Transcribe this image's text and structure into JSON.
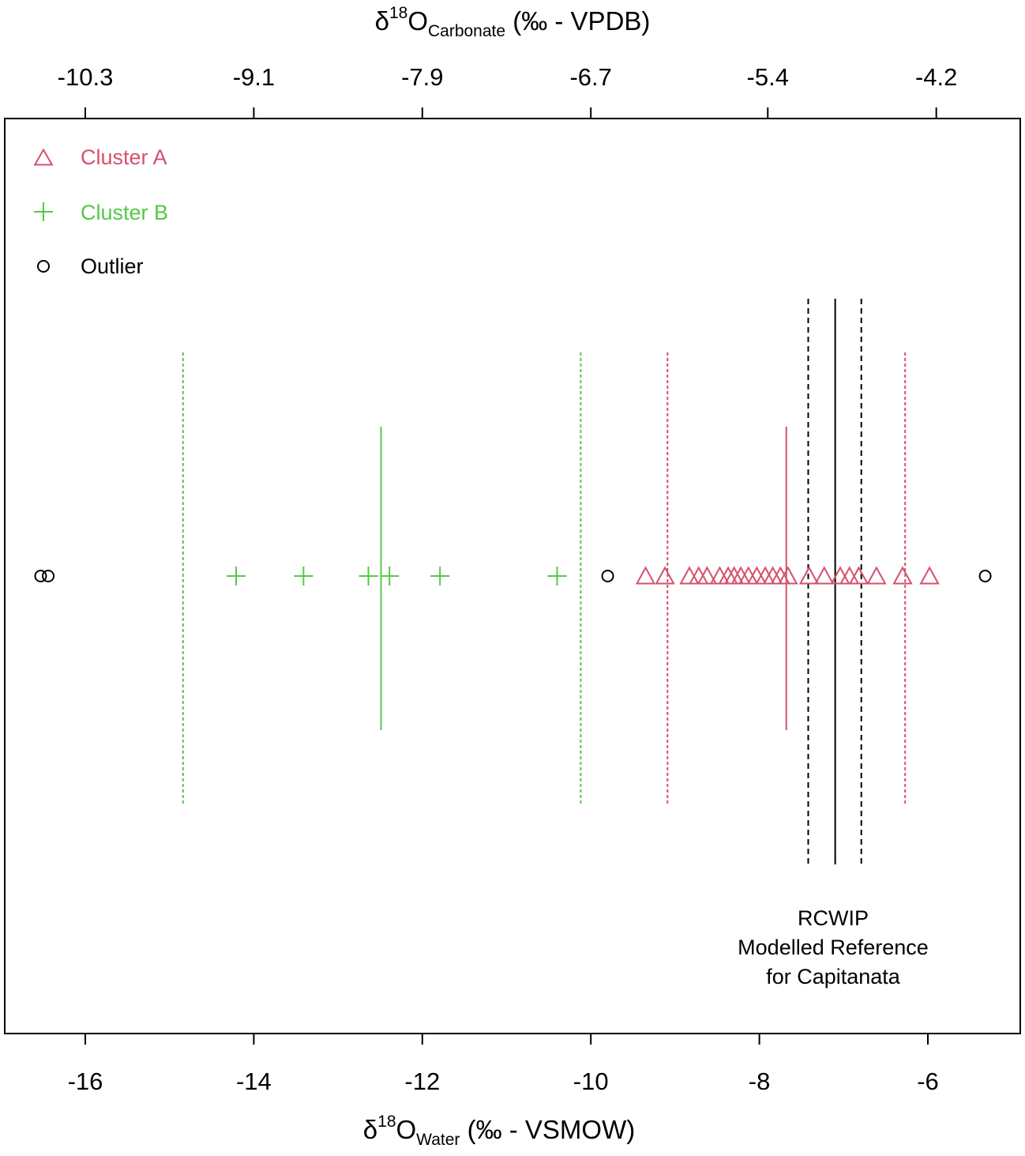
{
  "chart_data": {
    "type": "scatter",
    "bottom_axis": {
      "symbol": "δ",
      "sup": "18",
      "base": "O",
      "sub": "Water",
      "unit": " (‰ - VSMOW)",
      "ticks": [
        -16,
        -14,
        -12,
        -10,
        -8,
        -6
      ],
      "tick_labels": [
        "-16",
        "-14",
        "-12",
        "-10",
        "-8",
        "-6"
      ],
      "xlim": [
        -16.9,
        -5.2
      ]
    },
    "top_axis": {
      "symbol": "δ",
      "sup": "18",
      "base": "O",
      "sub": "Carbonate",
      "unit": " (‰ - VPDB)",
      "ticks": [
        -10.3,
        -9.1,
        -7.9,
        -6.7,
        -5.4,
        -4.2
      ],
      "tick_labels": [
        "-10.3",
        "-9.1",
        "-7.9",
        "-6.7",
        "-5.4",
        "-4.2"
      ],
      "water_equivalent": [
        -16.0,
        -14.0,
        -12.0,
        -10.0,
        -7.9,
        -5.9
      ]
    },
    "grid": false,
    "legend": {
      "placement": "top-left",
      "entries": [
        {
          "label": "Cluster A",
          "marker": "triangle",
          "color": "#d6506d"
        },
        {
          "label": "Cluster B",
          "marker": "plus",
          "color": "#56c84a"
        },
        {
          "label": "Outlier",
          "marker": "circle",
          "color": "#000000"
        }
      ]
    },
    "series": [
      {
        "name": "Cluster A",
        "marker": "triangle",
        "color": "#d6506d",
        "values": [
          -9.35,
          -9.12,
          -8.83,
          -8.72,
          -8.62,
          -8.47,
          -8.37,
          -8.3,
          -8.22,
          -8.13,
          -8.03,
          -7.93,
          -7.84,
          -7.75,
          -7.66,
          -7.41,
          -7.23,
          -7.04,
          -6.93,
          -6.82,
          -6.61,
          -6.3,
          -5.98
        ],
        "mean": -7.68,
        "bounds": [
          -9.09,
          -6.27
        ]
      },
      {
        "name": "Cluster B",
        "marker": "plus",
        "color": "#56c84a",
        "values": [
          -14.21,
          -13.41,
          -12.64,
          -12.39,
          -11.79,
          -10.4
        ],
        "mean": -12.49,
        "bounds": [
          -14.84,
          -10.12
        ]
      },
      {
        "name": "Outlier",
        "marker": "circle",
        "color": "#000000",
        "values": [
          -16.53,
          -16.44,
          -9.8,
          -5.32
        ]
      }
    ],
    "reference": {
      "color": "#000000",
      "mean": -7.1,
      "bounds": [
        -7.42,
        -6.79
      ]
    },
    "annotation": [
      "RCWIP",
      "Modelled Reference",
      "for Capitanata"
    ]
  }
}
